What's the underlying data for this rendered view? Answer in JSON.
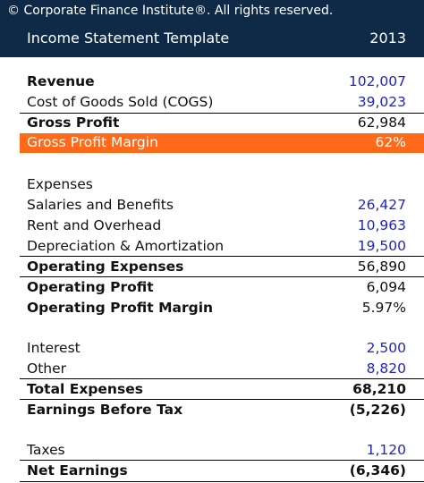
{
  "copyright": "© Corporate Finance Institute®. All rights reserved.",
  "title": "Income Statement Template",
  "year": "2013",
  "rows": {
    "revenue": {
      "label": "Revenue",
      "value": "102,007"
    },
    "cogs": {
      "label": "Cost of Goods Sold (COGS)",
      "value": "39,023"
    },
    "gross_profit": {
      "label": "Gross Profit",
      "value": "62,984"
    },
    "gross_margin": {
      "label": "Gross Profit Margin",
      "value": "62%"
    },
    "expenses_heading": {
      "label": "Expenses"
    },
    "salaries": {
      "label": "Salaries and Benefits",
      "value": "26,427"
    },
    "rent": {
      "label": "Rent and Overhead",
      "value": "10,963"
    },
    "depreciation": {
      "label": "Depreciation & Amortization",
      "value": "19,500"
    },
    "operating_expenses": {
      "label": "Operating Expenses",
      "value": "56,890"
    },
    "operating_profit": {
      "label": "Operating Profit",
      "value": "6,094"
    },
    "operating_margin": {
      "label": "Operating Profit Margin",
      "value": "5.97%"
    },
    "interest": {
      "label": "Interest",
      "value": "2,500"
    },
    "other": {
      "label": "Other",
      "value": "8,820"
    },
    "total_expenses": {
      "label": "Total Expenses",
      "value": "68,210"
    },
    "ebt": {
      "label": "Earnings Before Tax",
      "value": "(5,226)"
    },
    "taxes": {
      "label": "Taxes",
      "value": "1,120"
    },
    "net_earnings": {
      "label": "Net Earnings",
      "value": "(6,346)"
    }
  },
  "colors": {
    "header_bg": "#0e2a47",
    "highlight": "#ff6a1a",
    "input_blue": "#1f24c9"
  }
}
